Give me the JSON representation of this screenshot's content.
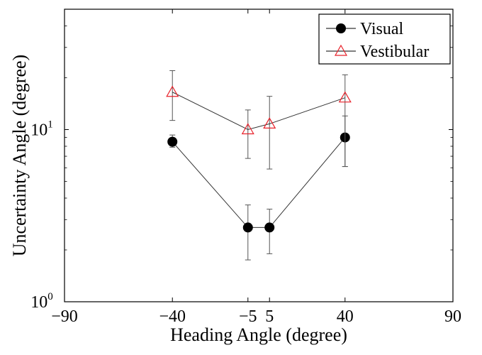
{
  "chart_data": {
    "type": "line",
    "title": "",
    "xlabel": "Heading Angle (degree)",
    "ylabel": "Uncertainty Angle (degree)",
    "xlim": [
      -90,
      90
    ],
    "ylim": [
      1,
      50
    ],
    "yscale": "log",
    "x_ticks": [
      -90,
      -40,
      -5,
      5,
      40,
      90
    ],
    "x_tick_labels": [
      "−90",
      "−40",
      "−5",
      "5",
      "40",
      "90"
    ],
    "y_ticks": [
      {
        "value": 1,
        "base": "10",
        "exp": "0"
      },
      {
        "value": 10,
        "base": "10",
        "exp": "1"
      }
    ],
    "grid": false,
    "legend_position": "top-right",
    "series": [
      {
        "name": "Visual",
        "marker": "filled-circle",
        "color": "#000000",
        "x": [
          -40,
          -5,
          5,
          40
        ],
        "y": [
          8.5,
          2.7,
          2.7,
          9.0
        ],
        "err_low": [
          7.9,
          1.75,
          1.9,
          6.1
        ],
        "err_high": [
          9.3,
          3.65,
          3.45,
          12.0
        ]
      },
      {
        "name": "Vestibular",
        "marker": "open-triangle",
        "color": "#e8212a",
        "x": [
          -40,
          -5,
          5,
          40
        ],
        "y": [
          16.5,
          10.0,
          10.8,
          15.3
        ],
        "err_low": [
          11.3,
          6.8,
          5.9,
          6.1
        ],
        "err_high": [
          22.0,
          13.0,
          15.6,
          20.8
        ]
      }
    ]
  }
}
